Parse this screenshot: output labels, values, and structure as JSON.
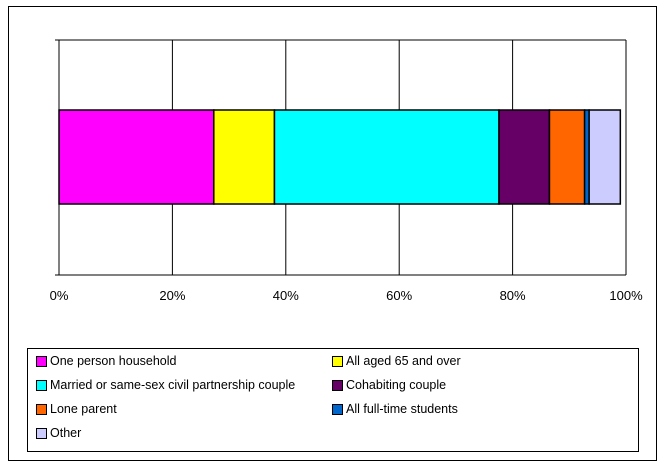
{
  "title": "",
  "chart_data": {
    "type": "bar",
    "orientation": "horizontal",
    "stacked": "percent",
    "title": "",
    "xlabel": "",
    "ylabel": "",
    "xlim": [
      0,
      100
    ],
    "x_ticks": [
      "0%",
      "20%",
      "40%",
      "60%",
      "80%",
      "100%"
    ],
    "grid": "vertical",
    "legend_position": "bottom",
    "series": [
      {
        "name": "One person household",
        "value": 27.3,
        "color": "#ff00ff"
      },
      {
        "name": "All aged 65 and over",
        "value": 10.7,
        "color": "#ffff00"
      },
      {
        "name": "Married or same-sex civil partnership couple",
        "value": 39.6,
        "color": "#00ffff"
      },
      {
        "name": "Cohabiting couple",
        "value": 8.9,
        "color": "#660066"
      },
      {
        "name": "Lone parent",
        "value": 6.2,
        "color": "#ff6600"
      },
      {
        "name": "All full-time students",
        "value": 0.8,
        "color": "#0066cc"
      },
      {
        "name": "Other",
        "value": 5.5,
        "color": "#ccccff"
      }
    ]
  }
}
